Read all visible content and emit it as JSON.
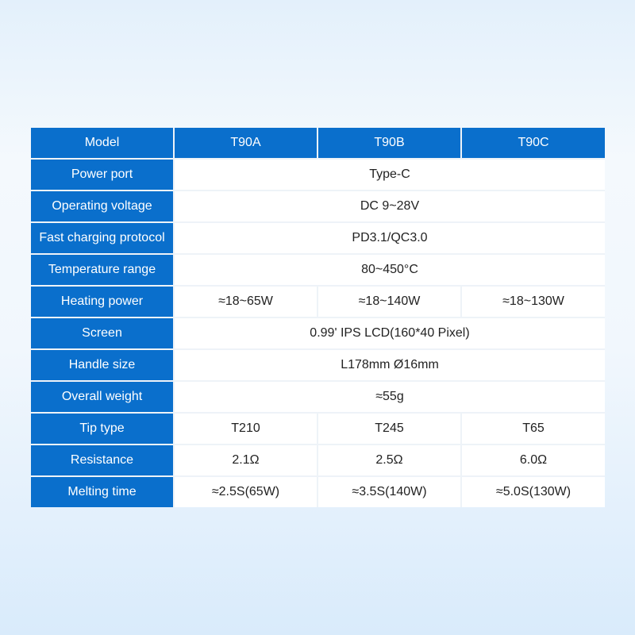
{
  "header": {
    "label": "Model",
    "models": [
      "T90A",
      "T90B",
      "T90C"
    ]
  },
  "rows": [
    {
      "label": "Power port",
      "values": [
        "Type-C"
      ]
    },
    {
      "label": "Operating voltage",
      "values": [
        "DC 9~28V"
      ]
    },
    {
      "label": "Fast charging protocol",
      "values": [
        "PD3.1/QC3.0"
      ]
    },
    {
      "label": "Temperature range",
      "values": [
        "80~450°C"
      ]
    },
    {
      "label": "Heating power",
      "values": [
        "≈18~65W",
        "≈18~140W",
        "≈18~130W"
      ]
    },
    {
      "label": "Screen",
      "values": [
        "0.99' IPS LCD(160*40 Pixel)"
      ]
    },
    {
      "label": "Handle size",
      "values": [
        "L178mm Ø16mm"
      ]
    },
    {
      "label": "Overall weight",
      "values": [
        "≈55g"
      ]
    },
    {
      "label": "Tip type",
      "values": [
        "T210",
        "T245",
        "T65"
      ]
    },
    {
      "label": "Resistance",
      "values": [
        "2.1Ω",
        "2.5Ω",
        "6.0Ω"
      ]
    },
    {
      "label": "Melting time",
      "values": [
        "≈2.5S(65W)",
        "≈3.5S(140W)",
        "≈5.0S(130W)"
      ]
    }
  ],
  "colors": {
    "header_blue": "#0a6fcc"
  }
}
